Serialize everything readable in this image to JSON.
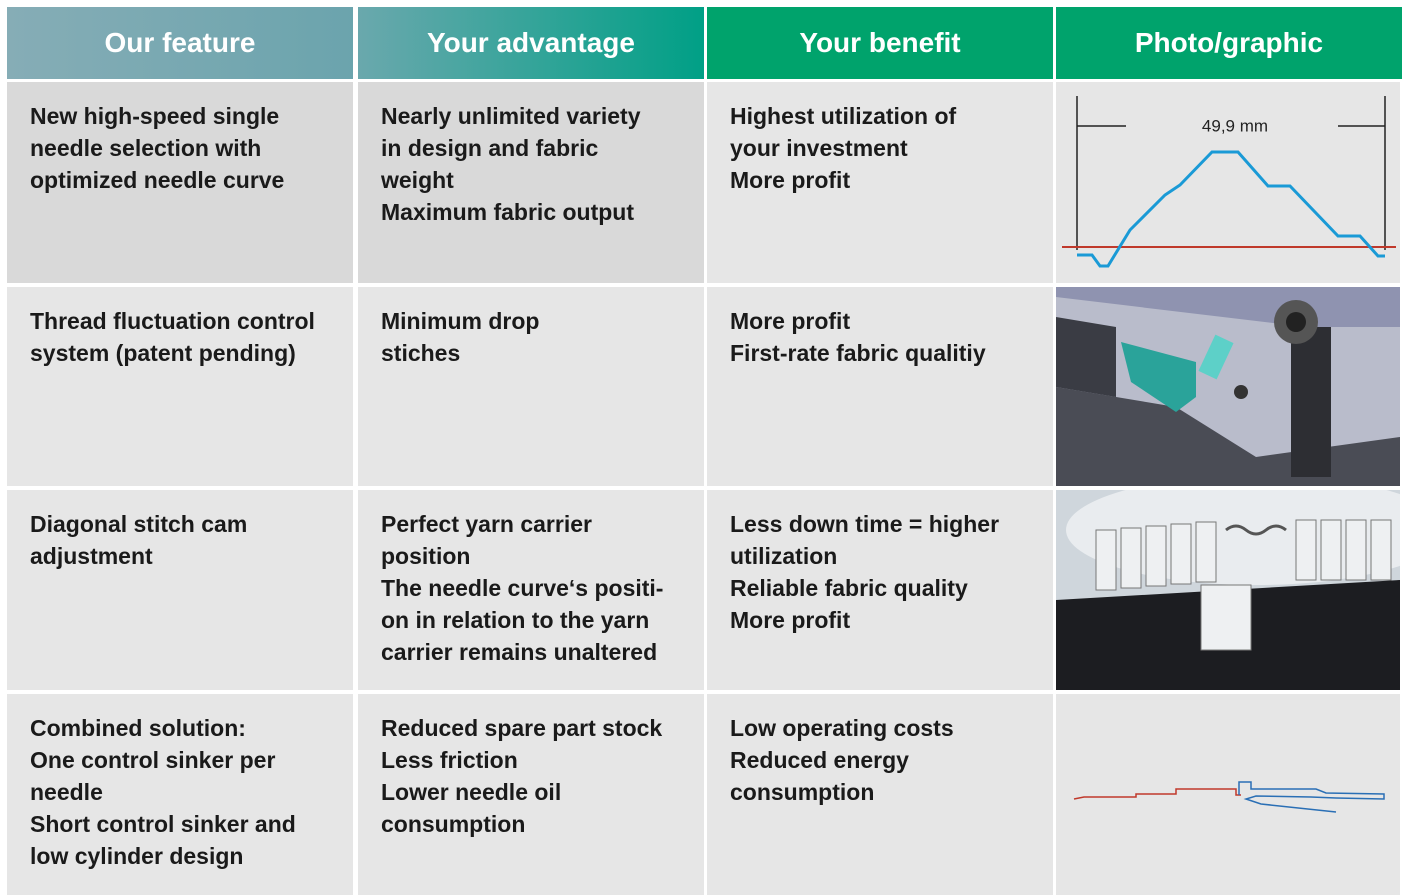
{
  "table": {
    "header": [
      "Our feature",
      "Your advantage",
      "Your benefit",
      "Photo/graphic"
    ],
    "rows": [
      [
        [
          "New high-speed single",
          "needle selection with",
          "optimized needle curve"
        ],
        [
          "Nearly unlimited variety",
          "in design and fabric",
          "weight",
          "Maximum fabric output"
        ],
        [
          "Highest utilization of",
          "your investment",
          "More profit"
        ]
      ],
      [
        [
          "Thread fluctuation control",
          "system (patent pending)"
        ],
        [
          "Minimum drop",
          "stiches"
        ],
        [
          "More profit",
          "First-rate fabric qualitiy"
        ]
      ],
      [
        [
          "Diagonal stitch cam",
          "adjustment"
        ],
        [
          "Perfect yarn carrier",
          "position",
          "The needle curve‘s positi-",
          "on in relation to the yarn",
          "carrier remains unaltered"
        ],
        [
          "Less down time = higher",
          "utilization",
          "Reliable fabric quality",
          "More profit"
        ]
      ],
      [
        [
          "Combined solution:",
          "One control sinker per",
          "needle",
          "Short control sinker and",
          "low cylinder design"
        ],
        [
          "Reduced spare part stock",
          "Less friction",
          "Lower needle oil",
          "consumption"
        ],
        [
          "Low operating costs",
          "Reduced energy",
          "consumption"
        ]
      ]
    ],
    "graphic_label": "49,9 mm"
  }
}
